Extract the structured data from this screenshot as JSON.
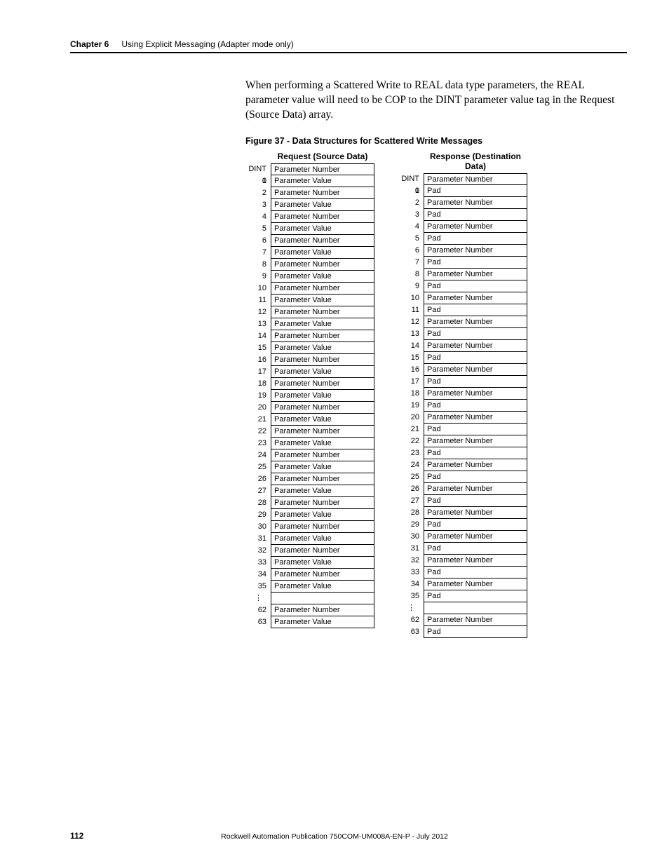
{
  "header": {
    "chapter_label": "Chapter 6",
    "chapter_title": "Using Explicit Messaging (Adapter mode only)"
  },
  "paragraph": "When performing a Scattered Write to REAL data type parameters, the REAL parameter value will need to be COP to the DINT parameter value tag in the Request (Source Data) array.",
  "figure_caption": "Figure 37 - Data Structures for Scattered Write Messages",
  "tables": {
    "left": {
      "header": "Request (Source Data)",
      "rows": [
        {
          "index": "DINT 0",
          "value": "Parameter Number"
        },
        {
          "index": "1",
          "value": "Parameter Value"
        },
        {
          "index": "2",
          "value": "Parameter Number"
        },
        {
          "index": "3",
          "value": "Parameter Value"
        },
        {
          "index": "4",
          "value": "Parameter Number"
        },
        {
          "index": "5",
          "value": "Parameter Value"
        },
        {
          "index": "6",
          "value": "Parameter Number"
        },
        {
          "index": "7",
          "value": "Parameter Value"
        },
        {
          "index": "8",
          "value": "Parameter Number"
        },
        {
          "index": "9",
          "value": "Parameter Value"
        },
        {
          "index": "10",
          "value": "Parameter Number"
        },
        {
          "index": "11",
          "value": "Parameter Value"
        },
        {
          "index": "12",
          "value": "Parameter Number"
        },
        {
          "index": "13",
          "value": "Parameter Value"
        },
        {
          "index": "14",
          "value": "Parameter Number"
        },
        {
          "index": "15",
          "value": "Parameter Value"
        },
        {
          "index": "16",
          "value": "Parameter Number"
        },
        {
          "index": "17",
          "value": "Parameter Value"
        },
        {
          "index": "18",
          "value": "Parameter Number"
        },
        {
          "index": "19",
          "value": "Parameter Value"
        },
        {
          "index": "20",
          "value": "Parameter Number"
        },
        {
          "index": "21",
          "value": "Parameter Value"
        },
        {
          "index": "22",
          "value": "Parameter Number"
        },
        {
          "index": "23",
          "value": "Parameter Value"
        },
        {
          "index": "24",
          "value": "Parameter Number"
        },
        {
          "index": "25",
          "value": "Parameter Value"
        },
        {
          "index": "26",
          "value": "Parameter Number"
        },
        {
          "index": "27",
          "value": "Parameter Value"
        },
        {
          "index": "28",
          "value": "Parameter Number"
        },
        {
          "index": "29",
          "value": "Parameter Value"
        },
        {
          "index": "30",
          "value": "Parameter Number"
        },
        {
          "index": "31",
          "value": "Parameter Value"
        },
        {
          "index": "32",
          "value": "Parameter Number"
        },
        {
          "index": "33",
          "value": "Parameter Value"
        },
        {
          "index": "34",
          "value": "Parameter Number"
        },
        {
          "index": "35",
          "value": "Parameter Value"
        }
      ],
      "tail": [
        {
          "index": "62",
          "value": "Parameter Number"
        },
        {
          "index": "63",
          "value": "Parameter Value"
        }
      ]
    },
    "right": {
      "header": "Response (Destination Data)",
      "rows": [
        {
          "index": "DINT 0",
          "value": "Parameter Number"
        },
        {
          "index": "1",
          "value": "Pad"
        },
        {
          "index": "2",
          "value": "Parameter Number"
        },
        {
          "index": "3",
          "value": "Pad"
        },
        {
          "index": "4",
          "value": "Parameter Number"
        },
        {
          "index": "5",
          "value": "Pad"
        },
        {
          "index": "6",
          "value": "Parameter Number"
        },
        {
          "index": "7",
          "value": "Pad"
        },
        {
          "index": "8",
          "value": "Parameter Number"
        },
        {
          "index": "9",
          "value": "Pad"
        },
        {
          "index": "10",
          "value": "Parameter Number"
        },
        {
          "index": "11",
          "value": "Pad"
        },
        {
          "index": "12",
          "value": "Parameter Number"
        },
        {
          "index": "13",
          "value": "Pad"
        },
        {
          "index": "14",
          "value": "Parameter Number"
        },
        {
          "index": "15",
          "value": "Pad"
        },
        {
          "index": "16",
          "value": "Parameter Number"
        },
        {
          "index": "17",
          "value": "Pad"
        },
        {
          "index": "18",
          "value": "Parameter Number"
        },
        {
          "index": "19",
          "value": "Pad"
        },
        {
          "index": "20",
          "value": "Parameter Number"
        },
        {
          "index": "21",
          "value": "Pad"
        },
        {
          "index": "22",
          "value": "Parameter Number"
        },
        {
          "index": "23",
          "value": "Pad"
        },
        {
          "index": "24",
          "value": "Parameter Number"
        },
        {
          "index": "25",
          "value": "Pad"
        },
        {
          "index": "26",
          "value": "Parameter Number"
        },
        {
          "index": "27",
          "value": "Pad"
        },
        {
          "index": "28",
          "value": "Parameter Number"
        },
        {
          "index": "29",
          "value": "Pad"
        },
        {
          "index": "30",
          "value": "Parameter Number"
        },
        {
          "index": "31",
          "value": "Pad"
        },
        {
          "index": "32",
          "value": "Parameter Number"
        },
        {
          "index": "33",
          "value": "Pad"
        },
        {
          "index": "34",
          "value": "Parameter Number"
        },
        {
          "index": "35",
          "value": "Pad"
        }
      ],
      "tail": [
        {
          "index": "62",
          "value": "Parameter Number"
        },
        {
          "index": "63",
          "value": "Pad"
        }
      ]
    }
  },
  "vdots": "⋮",
  "footer": {
    "page_number": "112",
    "publication": "Rockwell Automation Publication 750COM-UM008A-EN-P - July 2012"
  },
  "colors": {
    "text": "#000000",
    "background": "#ffffff",
    "border": "#000000"
  },
  "fonts": {
    "body_serif": "Georgia",
    "ui_sans": "Arial",
    "caption_size_pt": 12.5,
    "table_size_pt": 11
  }
}
